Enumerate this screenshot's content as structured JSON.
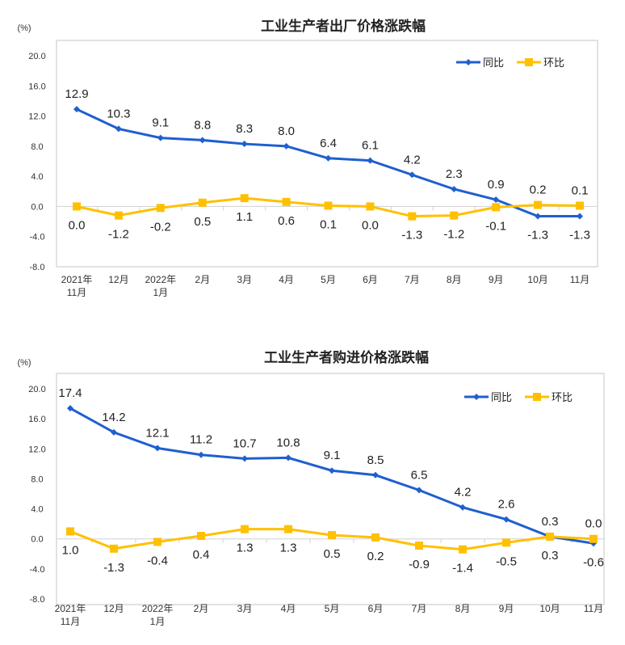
{
  "chart_data": [
    {
      "type": "line",
      "title": "工业生产者出厂价格涨跌幅",
      "ylabel": "(%)",
      "ylim": [
        -8,
        20
      ],
      "yticks": [
        "20.0",
        "16.0",
        "12.0",
        "8.0",
        "4.0",
        "0.0",
        "-4.0",
        "-8.0"
      ],
      "categories": [
        [
          "2021年",
          "11月"
        ],
        [
          "12月"
        ],
        [
          "2022年",
          "1月"
        ],
        [
          "2月"
        ],
        [
          "3月"
        ],
        [
          "4月"
        ],
        [
          "5月"
        ],
        [
          "6月"
        ],
        [
          "7月"
        ],
        [
          "8月"
        ],
        [
          "9月"
        ],
        [
          "10月"
        ],
        [
          "11月"
        ]
      ],
      "legend_position": "top-right",
      "series": [
        {
          "name": "同比",
          "color": "#1f5fcf",
          "marker": "diamond",
          "values": [
            12.9,
            10.3,
            9.1,
            8.8,
            8.3,
            8.0,
            6.4,
            6.1,
            4.2,
            2.3,
            0.9,
            -1.3,
            -1.3
          ],
          "labels": [
            "12.9",
            "10.3",
            "9.1",
            "8.8",
            "8.3",
            "8.0",
            "6.4",
            "6.1",
            "4.2",
            "2.3",
            "0.9",
            "-1.3",
            "-1.3"
          ],
          "label_side": [
            "above",
            "above",
            "above",
            "above",
            "above",
            "above",
            "above",
            "above",
            "above",
            "above",
            "above",
            "below",
            "below"
          ]
        },
        {
          "name": "环比",
          "color": "#ffc000",
          "marker": "square",
          "values": [
            0.0,
            -1.2,
            -0.2,
            0.5,
            1.1,
            0.6,
            0.1,
            0.0,
            -1.3,
            -1.2,
            -0.1,
            0.2,
            0.1
          ],
          "labels": [
            "0.0",
            "-1.2",
            "-0.2",
            "0.5",
            "1.1",
            "0.6",
            "0.1",
            "0.0",
            "-1.3",
            "-1.2",
            "-0.1",
            "0.2",
            "0.1"
          ],
          "label_side": [
            "below",
            "below",
            "below",
            "below",
            "below",
            "below",
            "below",
            "below",
            "below",
            "below",
            "below",
            "above",
            "above"
          ]
        }
      ]
    },
    {
      "type": "line",
      "title": "工业生产者购进价格涨跌幅",
      "ylabel": "(%)",
      "ylim": [
        -8,
        20
      ],
      "yticks": [
        "20.0",
        "16.0",
        "12.0",
        "8.0",
        "4.0",
        "0.0",
        "-4.0",
        "-8.0"
      ],
      "categories": [
        [
          "2021年",
          "11月"
        ],
        [
          "12月"
        ],
        [
          "2022年",
          "1月"
        ],
        [
          "2月"
        ],
        [
          "3月"
        ],
        [
          "4月"
        ],
        [
          "5月"
        ],
        [
          "6月"
        ],
        [
          "7月"
        ],
        [
          "8月"
        ],
        [
          "9月"
        ],
        [
          "10月"
        ],
        [
          "11月"
        ]
      ],
      "legend_position": "top-right",
      "series": [
        {
          "name": "同比",
          "color": "#1f5fcf",
          "marker": "diamond",
          "values": [
            17.4,
            14.2,
            12.1,
            11.2,
            10.7,
            10.8,
            9.1,
            8.5,
            6.5,
            4.2,
            2.6,
            0.3,
            -0.6
          ],
          "labels": [
            "17.4",
            "14.2",
            "12.1",
            "11.2",
            "10.7",
            "10.8",
            "9.1",
            "8.5",
            "6.5",
            "4.2",
            "2.6",
            "0.3",
            "-0.6"
          ],
          "label_side": [
            "above",
            "above",
            "above",
            "above",
            "above",
            "above",
            "above",
            "above",
            "above",
            "above",
            "above",
            "above",
            "below"
          ]
        },
        {
          "name": "环比",
          "color": "#ffc000",
          "marker": "square",
          "values": [
            1.0,
            -1.3,
            -0.4,
            0.4,
            1.3,
            1.3,
            0.5,
            0.2,
            -0.9,
            -1.4,
            -0.5,
            0.3,
            0.0
          ],
          "labels": [
            "1.0",
            "-1.3",
            "-0.4",
            "0.4",
            "1.3",
            "1.3",
            "0.5",
            "0.2",
            "-0.9",
            "-1.4",
            "-0.5",
            "0.3",
            "0.0"
          ],
          "label_side": [
            "below",
            "below",
            "below",
            "below",
            "below",
            "below",
            "below",
            "below",
            "below",
            "below",
            "below",
            "below",
            "above"
          ]
        }
      ]
    }
  ]
}
